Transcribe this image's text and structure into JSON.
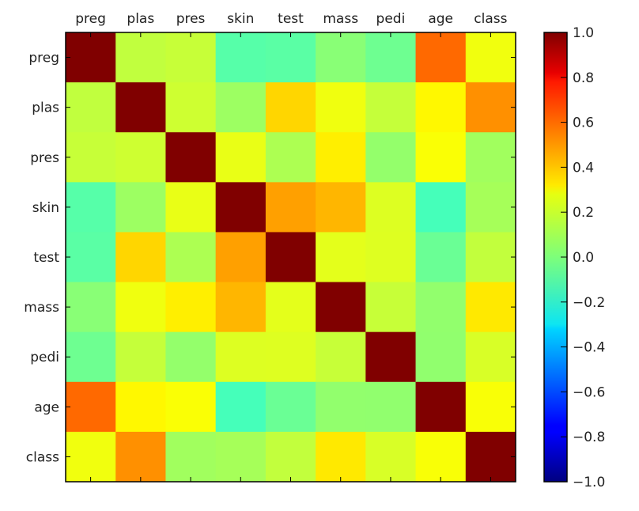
{
  "chart_data": {
    "type": "heatmap",
    "colormap": "jet",
    "labels": [
      "preg",
      "plas",
      "pres",
      "skin",
      "test",
      "mass",
      "pedi",
      "age",
      "class"
    ],
    "values": [
      [
        1.0,
        0.129,
        0.141,
        -0.082,
        -0.074,
        0.018,
        -0.034,
        0.544,
        0.222
      ],
      [
        0.129,
        1.0,
        0.153,
        0.057,
        0.331,
        0.221,
        0.137,
        0.264,
        0.467
      ],
      [
        0.141,
        0.153,
        1.0,
        0.207,
        0.089,
        0.282,
        0.041,
        0.24,
        0.065
      ],
      [
        -0.082,
        0.057,
        0.207,
        1.0,
        0.437,
        0.393,
        0.184,
        -0.114,
        0.075
      ],
      [
        -0.074,
        0.331,
        0.089,
        0.437,
        1.0,
        0.198,
        0.185,
        -0.042,
        0.131
      ],
      [
        0.018,
        0.221,
        0.282,
        0.393,
        0.198,
        1.0,
        0.141,
        0.036,
        0.293
      ],
      [
        -0.034,
        0.137,
        0.041,
        0.184,
        0.185,
        0.141,
        1.0,
        0.034,
        0.174
      ],
      [
        0.544,
        0.264,
        0.24,
        -0.114,
        -0.042,
        0.036,
        0.034,
        1.0,
        0.238
      ],
      [
        0.222,
        0.467,
        0.065,
        0.075,
        0.131,
        0.293,
        0.174,
        0.238,
        1.0
      ]
    ],
    "vmin": -1.0,
    "vmax": 1.0,
    "colorbar_ticks": [
      "1.0",
      "0.8",
      "0.6",
      "0.4",
      "0.2",
      "0.0",
      "−0.2",
      "−0.4",
      "−0.6",
      "−0.8",
      "−1.0"
    ],
    "xlabel_position": "top",
    "grid": false
  }
}
